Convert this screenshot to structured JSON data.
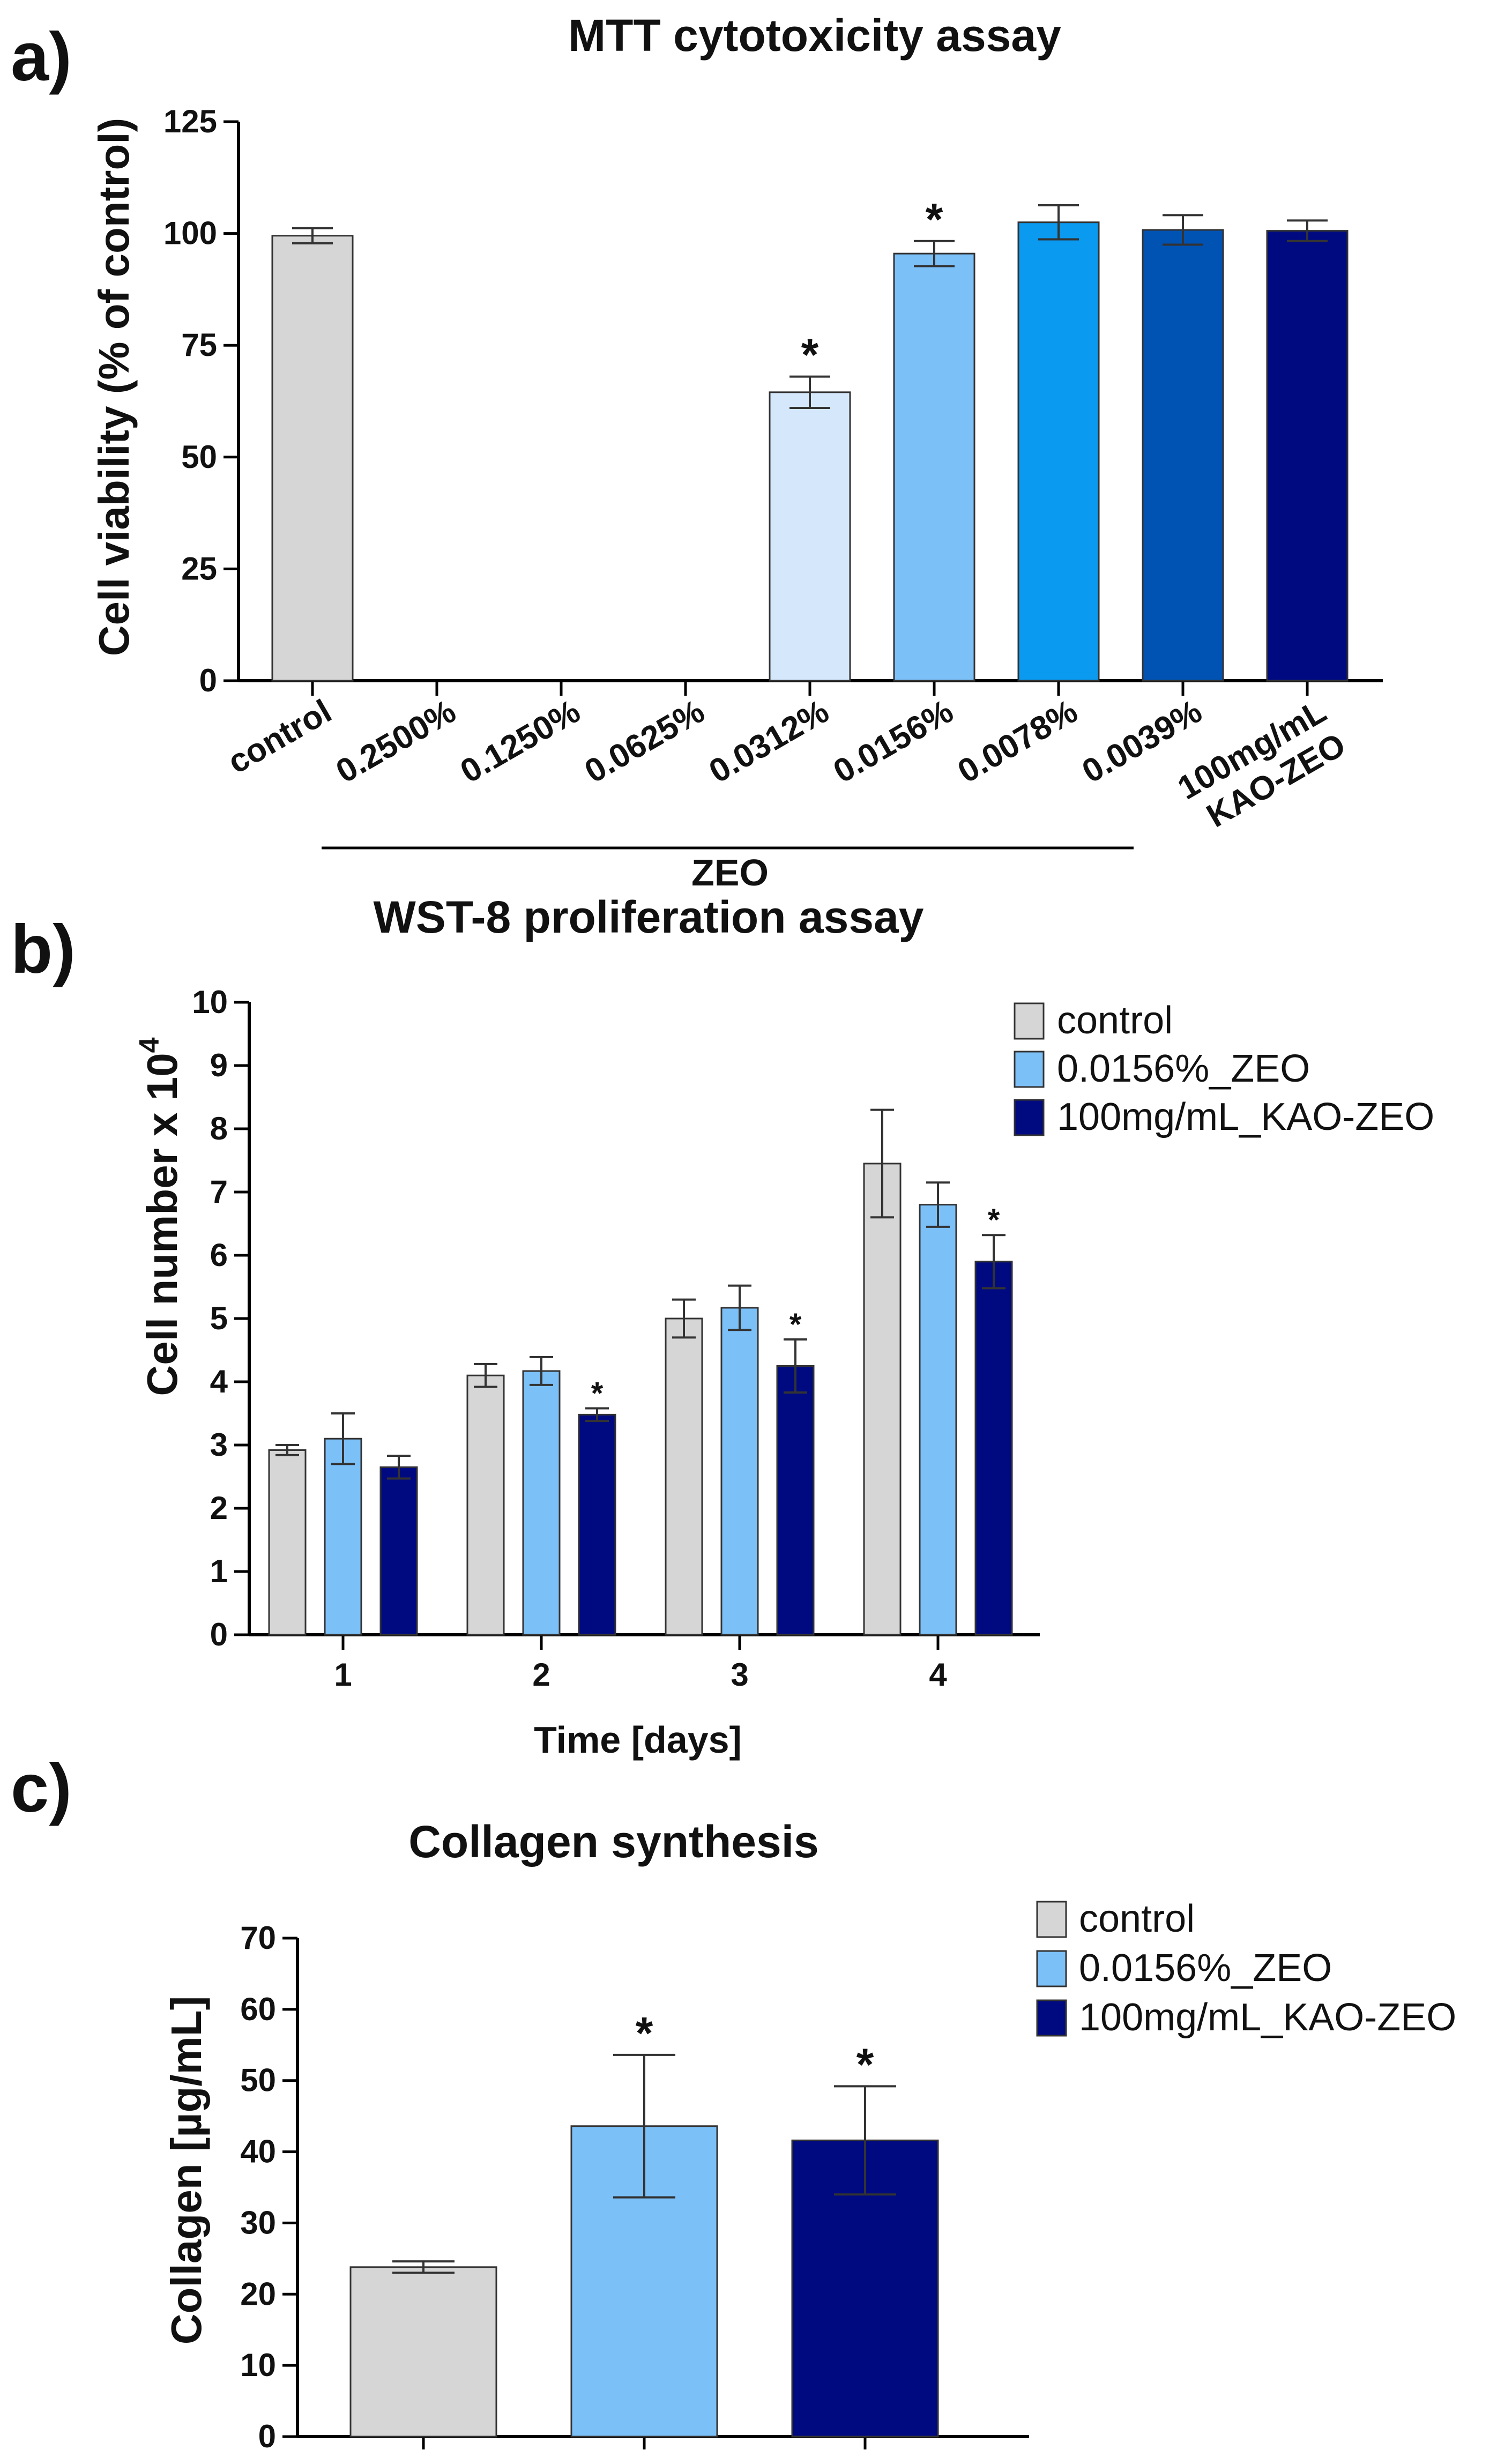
{
  "chart_data": [
    {
      "panel": "a)",
      "type": "bar",
      "title": "MTT cytotoxicity assay",
      "ylabel": "Cell viability (% of control)",
      "ylim": [
        0,
        125
      ],
      "yticks": [
        "0",
        "25",
        "50",
        "75",
        "100",
        "125"
      ],
      "categories": [
        "control",
        "0.2500%",
        "0.1250%",
        "0.0625%",
        "0.0312%",
        "0.0156%",
        "0.0078%",
        "0.0039%",
        "100mg/mL KAO-ZEO"
      ],
      "category_lines": [
        [
          "control"
        ],
        [
          "0.2500%"
        ],
        [
          "0.1250%"
        ],
        [
          "0.0625%"
        ],
        [
          "0.0312%"
        ],
        [
          "0.0156%"
        ],
        [
          "0.0078%"
        ],
        [
          "0.0039%"
        ],
        [
          "100mg/mL",
          "KAO-ZEO"
        ]
      ],
      "group_label": "ZEO",
      "values": [
        99.5,
        0,
        0,
        0,
        64.5,
        95.5,
        102.5,
        100.8,
        100.6
      ],
      "errors": [
        1.7,
        0,
        0,
        0,
        3.5,
        2.8,
        3.8,
        3.3,
        2.3
      ],
      "significant": [
        false,
        false,
        false,
        false,
        true,
        true,
        false,
        false,
        false
      ],
      "star_label": "*",
      "colors": [
        "#d6d6d6",
        "#ffffff",
        "#ffffff",
        "#ffffff",
        "#d5e8fb",
        "#7cc0f8",
        "#0a9af0",
        "#0052b3",
        "#000a80"
      ]
    },
    {
      "panel": "b)",
      "type": "bar",
      "title": "WST-8 proliferation assay",
      "ylabel_main": "Cell number x 10",
      "ylabel_exp": "4",
      "xlabel": "Time [days]",
      "ylim": [
        0,
        10
      ],
      "yticks": [
        "0",
        "1",
        "2",
        "3",
        "4",
        "5",
        "6",
        "7",
        "8",
        "9",
        "10"
      ],
      "categories": [
        "1",
        "2",
        "3",
        "4"
      ],
      "series": [
        {
          "name": "control",
          "color": "#d6d6d6",
          "values": [
            2.92,
            4.1,
            5.0,
            7.45
          ],
          "errors": [
            0.08,
            0.18,
            0.3,
            0.85
          ],
          "significant": [
            false,
            false,
            false,
            false
          ]
        },
        {
          "name": "0.0156%_ZEO",
          "color": "#7cc0f8",
          "values": [
            3.1,
            4.17,
            5.17,
            6.8
          ],
          "errors": [
            0.4,
            0.22,
            0.35,
            0.35
          ],
          "significant": [
            false,
            false,
            false,
            false
          ]
        },
        {
          "name": "100mg/mL_KAO-ZEO",
          "color": "#000a80",
          "values": [
            2.65,
            3.48,
            4.25,
            5.9
          ],
          "errors": [
            0.18,
            0.1,
            0.42,
            0.42
          ],
          "significant": [
            false,
            true,
            true,
            true
          ]
        }
      ],
      "star_label": "*",
      "legend_position": "top-right"
    },
    {
      "panel": "c)",
      "type": "bar",
      "title": "Collagen synthesis",
      "ylabel": "Collagen [µg/mL]",
      "ylim": [
        0,
        70
      ],
      "yticks": [
        "0",
        "10",
        "20",
        "30",
        "40",
        "50",
        "60",
        "70"
      ],
      "series": [
        {
          "name": "control",
          "color": "#d6d6d6",
          "value": 23.8,
          "error": 0.8,
          "significant": false
        },
        {
          "name": "0.0156%_ZEO",
          "color": "#7cc0f8",
          "value": 43.6,
          "error": 10.0,
          "significant": true
        },
        {
          "name": "100mg/mL_KAO-ZEO",
          "color": "#000a80",
          "value": 41.6,
          "error": 7.6,
          "significant": true
        }
      ],
      "star_label": "*",
      "legend_position": "top-right"
    }
  ]
}
